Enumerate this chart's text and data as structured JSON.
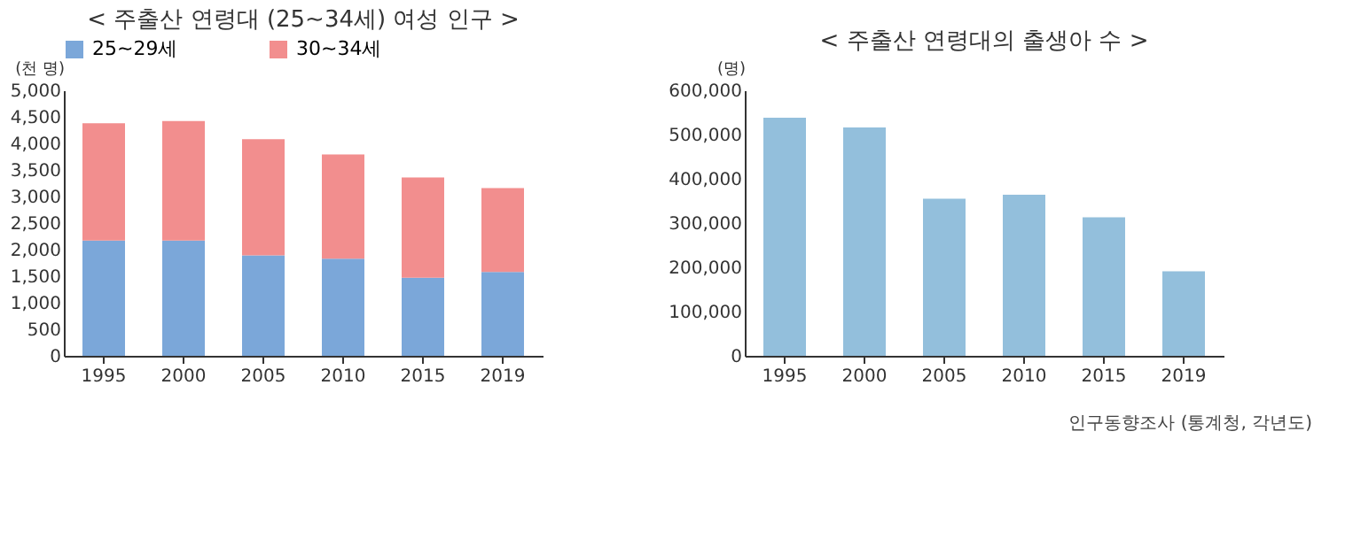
{
  "chart_data": [
    {
      "type": "bar",
      "title": "< 주출산 연령대 (25~34세) 여성 인구 >",
      "ylabel": "(천 명)",
      "categories": [
        "1995",
        "2000",
        "2005",
        "2010",
        "2015",
        "2019"
      ],
      "stacked": true,
      "legend": "top",
      "series": [
        {
          "name": "25~29세",
          "color": "#7ba7d9",
          "values": [
            2170,
            2170,
            1890,
            1830,
            1470,
            1580
          ]
        },
        {
          "name": "30~34세",
          "color": "#f28e8e",
          "values": [
            2210,
            2250,
            2190,
            1960,
            1890,
            1580
          ]
        }
      ],
      "ylim": [
        0,
        5000
      ],
      "yticks": [
        0,
        500,
        {
          "value": 1000,
          "label": "1,000"
        },
        {
          "value": 1500,
          "label": "1,500"
        },
        {
          "value": 2000,
          "label": "2,000"
        },
        {
          "value": 2500,
          "label": "2,500"
        },
        {
          "value": 3000,
          "label": "3,000"
        },
        {
          "value": 3500,
          "label": "3,500"
        },
        {
          "value": 4000,
          "label": "4,000"
        },
        {
          "value": 4500,
          "label": "4,500"
        },
        {
          "value": 5000,
          "label": "5,000"
        }
      ],
      "grid": false
    },
    {
      "type": "bar",
      "title": "< 주출산 연령대의 출생아 수 >",
      "ylabel": "(명)",
      "categories": [
        "1995",
        "2000",
        "2005",
        "2010",
        "2015",
        "2019"
      ],
      "series": [
        {
          "color": "#93bfdc",
          "values": [
            538000,
            516000,
            355000,
            364000,
            313000,
            191000
          ]
        }
      ],
      "ylim": [
        0,
        600000
      ],
      "yticks": [
        0,
        {
          "value": 100000,
          "label": "100,000"
        },
        {
          "value": 200000,
          "label": "200,000"
        },
        {
          "value": 300000,
          "label": "300,000"
        },
        {
          "value": 400000,
          "label": "400,000"
        },
        {
          "value": 500000,
          "label": "500,000"
        },
        {
          "value": 600000,
          "label": "600,000"
        }
      ],
      "grid": false,
      "annotations": [
        "인구동향조사 (통계청, 각년도)"
      ]
    }
  ]
}
